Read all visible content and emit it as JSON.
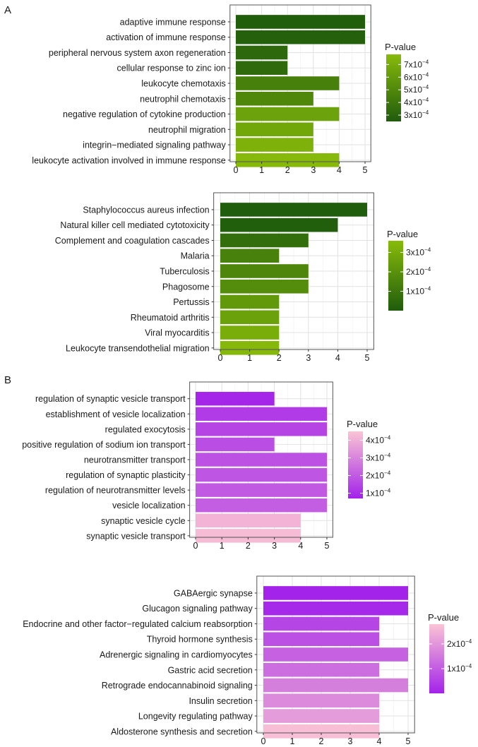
{
  "panel_labels": [
    "A",
    "B"
  ],
  "chart_data": [
    {
      "type": "bar",
      "orientation": "horizontal",
      "categories": [
        "adaptive immune response",
        "activation of immune response",
        "peripheral nervous system axon regeneration",
        "cellular response to zinc ion",
        "leukocyte chemotaxis",
        "neutrophil chemotaxis",
        "negative regulation of cytokine production",
        "neutrophil migration",
        "integrin−mediated signaling pathway",
        "leukocyte activation involved in immune response"
      ],
      "values": [
        5,
        5,
        2,
        2,
        4,
        3,
        4,
        3,
        3,
        4
      ],
      "pvalues": [
        0.00026,
        0.00028,
        0.00032,
        0.00033,
        0.00045,
        0.00049,
        0.00064,
        0.00067,
        0.00073,
        0.00077
      ],
      "xlim": [
        0,
        5
      ],
      "xticks": [
        0,
        1,
        2,
        3,
        4,
        5
      ],
      "legend": {
        "title": "P-value",
        "ticks": [
          {
            "base": "3x10",
            "exp": "−4"
          },
          {
            "base": "4x10",
            "exp": "−4"
          },
          {
            "base": "5x10",
            "exp": "−4"
          },
          {
            "base": "6x10",
            "exp": "−4"
          },
          {
            "base": "7x10",
            "exp": "−4"
          }
        ],
        "tick_values": [
          0.0003,
          0.0004,
          0.0005,
          0.0006,
          0.0007
        ],
        "range": [
          0.00025,
          0.00078
        ],
        "color_low": "#1f5c0c",
        "color_high": "#88bb0a"
      }
    },
    {
      "type": "bar",
      "orientation": "horizontal",
      "categories": [
        "Staphylococcus aureus infection",
        "Natural killer cell mediated cytotoxicity",
        "Complement and coagulation cascades",
        "Malaria",
        "Tuberculosis",
        "Phagosome",
        "Pertussis",
        "Rheumatoid arthritis",
        "Viral myocarditis",
        "Leukocyte transendothelial migration"
      ],
      "values": [
        5,
        4,
        3,
        2,
        3,
        3,
        2,
        2,
        2,
        2
      ],
      "pvalues": [
        2e-06,
        1e-05,
        7e-05,
        0.00014,
        0.00016,
        0.00018,
        0.00023,
        0.00026,
        0.00031,
        0.00035
      ],
      "xlim": [
        0,
        5
      ],
      "xticks": [
        0,
        1,
        2,
        3,
        4,
        5
      ],
      "legend": {
        "title": "P-value",
        "ticks": [
          {
            "base": "1x10",
            "exp": "−4"
          },
          {
            "base": "2x10",
            "exp": "−4"
          },
          {
            "base": "3x10",
            "exp": "−4"
          }
        ],
        "tick_values": [
          0.0001,
          0.0002,
          0.0003
        ],
        "range": [
          0,
          0.00036
        ],
        "color_low": "#1f5c0c",
        "color_high": "#88bb0a"
      }
    },
    {
      "type": "bar",
      "orientation": "horizontal",
      "categories": [
        "regulation of synaptic vesicle transport",
        "establishment of vesicle localization",
        "regulated exocytosis",
        "positive regulation of sodium ion transport",
        "neurotransmitter transport",
        "regulation of synaptic plasticity",
        "regulation of neurotransmitter levels",
        "vesicle localization",
        "synaptic vesicle cycle",
        "synaptic vesicle transport"
      ],
      "values": [
        3,
        5,
        5,
        3,
        5,
        5,
        5,
        5,
        4,
        4
      ],
      "pvalues": [
        8e-05,
        0.00013,
        0.00015,
        0.00017,
        0.00018,
        0.00019,
        0.0002,
        0.00021,
        0.00041,
        0.00043
      ],
      "xlim": [
        0,
        5
      ],
      "xticks": [
        0,
        1,
        2,
        3,
        4,
        5
      ],
      "legend": {
        "title": "P-value",
        "ticks": [
          {
            "base": "1x10",
            "exp": "−4"
          },
          {
            "base": "2x10",
            "exp": "−4"
          },
          {
            "base": "3x10",
            "exp": "−4"
          },
          {
            "base": "4x10",
            "exp": "−4"
          }
        ],
        "tick_values": [
          0.0001,
          0.0002,
          0.0003,
          0.0004
        ],
        "range": [
          7e-05,
          0.00045
        ],
        "color_low": "#a322ea",
        "color_high": "#fbc4d4"
      }
    },
    {
      "type": "bar",
      "orientation": "horizontal",
      "categories": [
        "GABAergic synapse",
        "Glucagon signaling pathway",
        "Endocrine and other factor−regulated calcium reabsorption",
        "Thyroid hormone synthesis",
        "Adrenergic signaling in cardiomyocytes",
        "Gastric acid secretion",
        "Retrograde endocannabinoid signaling",
        "Insulin secretion",
        "Longevity regulating pathway",
        "Aldosterone synthesis and secretion"
      ],
      "values": [
        5,
        5,
        4,
        4,
        5,
        4,
        5,
        4,
        4,
        4
      ],
      "pvalues": [
        2e-06,
        1e-05,
        6e-05,
        8e-05,
        0.00011,
        0.00013,
        0.00016,
        0.00018,
        0.00021,
        0.00027
      ],
      "xlim": [
        0,
        5
      ],
      "xticks": [
        0,
        1,
        2,
        3,
        4,
        5
      ],
      "legend": {
        "title": "P-value",
        "ticks": [
          {
            "base": "1x10",
            "exp": "−4"
          },
          {
            "base": "2x10",
            "exp": "−4"
          }
        ],
        "tick_values": [
          0.0001,
          0.0002
        ],
        "range": [
          0,
          0.00028
        ],
        "color_low": "#a322ea",
        "color_high": "#fbc4d4"
      }
    }
  ]
}
